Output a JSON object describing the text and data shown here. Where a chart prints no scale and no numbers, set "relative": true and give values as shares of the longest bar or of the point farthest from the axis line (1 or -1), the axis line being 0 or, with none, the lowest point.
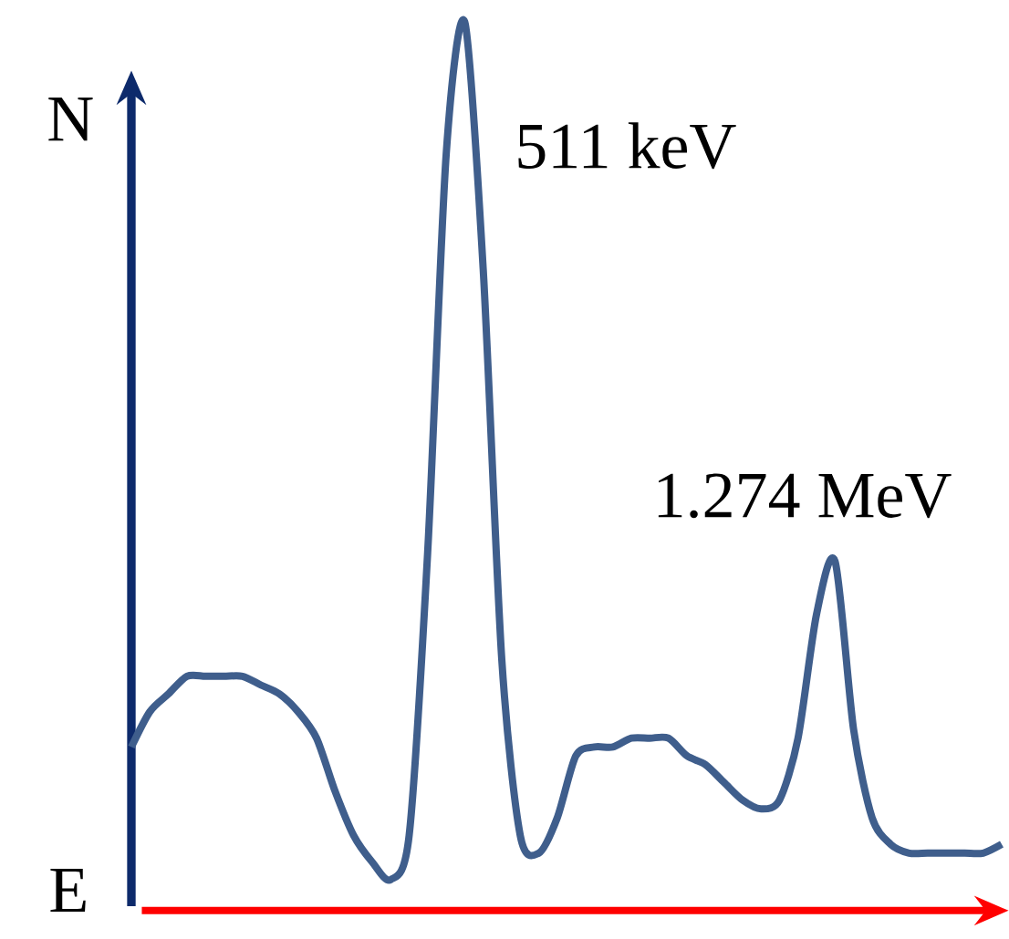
{
  "chart_data": {
    "type": "line",
    "xlabel": "E",
    "ylabel": "N",
    "relative": true,
    "color": "#3f5e8c",
    "categories": [
      null,
      null,
      null,
      null,
      null,
      null,
      null,
      null,
      null,
      null,
      null,
      null,
      null,
      null,
      null,
      null,
      null,
      null,
      null,
      null,
      null,
      null,
      null,
      null,
      null,
      null,
      null,
      null,
      null,
      null,
      null,
      null,
      null,
      null,
      null,
      null,
      null,
      null,
      null,
      null,
      null,
      null,
      null,
      null,
      null,
      null,
      null,
      null
    ],
    "values": [
      0.18,
      0.22,
      0.24,
      0.26,
      0.26,
      0.26,
      0.26,
      0.25,
      0.24,
      0.22,
      0.19,
      0.13,
      0.08,
      0.05,
      0.03,
      0.08,
      0.4,
      0.85,
      1.0,
      0.72,
      0.28,
      0.08,
      0.06,
      0.1,
      0.17,
      0.18,
      0.18,
      0.19,
      0.19,
      0.19,
      0.17,
      0.16,
      0.14,
      0.12,
      0.11,
      0.12,
      0.19,
      0.33,
      0.39,
      0.2,
      0.1,
      0.07,
      0.06,
      0.06,
      0.06,
      0.06,
      0.06,
      0.07
    ],
    "annotations": [
      "511 keV",
      "1.274 MeV"
    ]
  }
}
